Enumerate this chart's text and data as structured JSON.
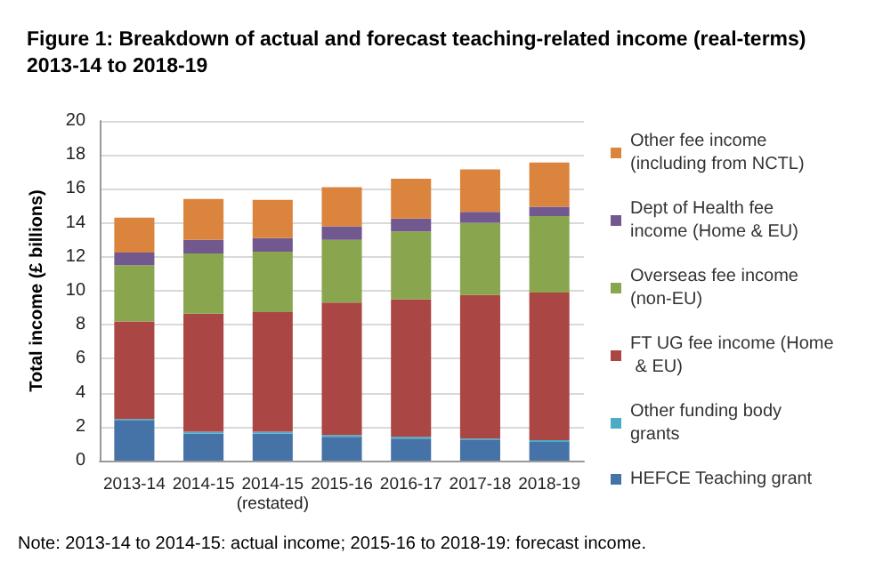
{
  "chart_data": {
    "type": "bar",
    "title": "Figure 1: Breakdown of actual and forecast teaching-related income (real-terms) 2013-14 to 2018-19",
    "ylabel": "Total income (£ billions)",
    "categories": [
      "2013-14",
      "2014-15",
      "2014-15\n(restated)",
      "2015-16",
      "2016-17",
      "2017-18",
      "2018-19"
    ],
    "stacked": true,
    "series": [
      {
        "name": "HEFCE Teaching grant",
        "color": "#4572a7",
        "values": [
          2.35,
          1.6,
          1.6,
          1.4,
          1.3,
          1.2,
          1.1
        ]
      },
      {
        "name": "Other funding body grants",
        "color": "#4bacc6",
        "values": [
          0.1,
          0.1,
          0.1,
          0.1,
          0.1,
          0.1,
          0.1
        ]
      },
      {
        "name": "FT UG fee income (Home & EU)",
        "color": "#aa4643",
        "values": [
          5.75,
          6.95,
          7.05,
          7.8,
          8.1,
          8.45,
          8.7
        ]
      },
      {
        "name": "Overseas fee income (non-EU)",
        "color": "#89a54e",
        "values": [
          3.3,
          3.55,
          3.55,
          3.7,
          4.0,
          4.25,
          4.5
        ]
      },
      {
        "name": "Dept of Health fee income (Home & EU)",
        "color": "#71588f",
        "values": [
          0.75,
          0.8,
          0.8,
          0.8,
          0.75,
          0.65,
          0.55
        ]
      },
      {
        "name": "Other fee income (including from NCTL)",
        "color": "#db843d",
        "values": [
          2.05,
          2.4,
          2.25,
          2.3,
          2.35,
          2.5,
          2.6
        ]
      }
    ],
    "ylim": [
      0,
      20
    ],
    "yticks": [
      0,
      2,
      4,
      6,
      8,
      10,
      12,
      14,
      16,
      18,
      20
    ],
    "grid": "y",
    "legend": "right",
    "annotations": [
      "Note: 2013-14 to 2014-15: actual income; 2015-16 to 2018-19: forecast income."
    ]
  }
}
